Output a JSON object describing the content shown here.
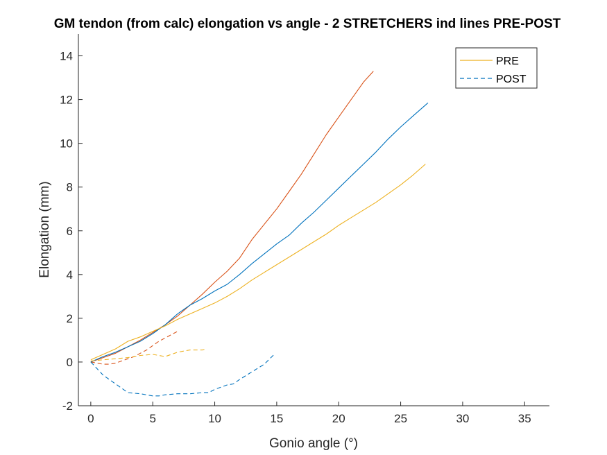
{
  "chart_data": {
    "type": "line",
    "title": "GM tendon (from calc) elongation vs angle - 2 STRETCHERS ind lines PRE-POST",
    "xlabel": "Gonio angle (°)",
    "ylabel": "Elongation (mm)",
    "xlim": [
      -1,
      37
    ],
    "ylim": [
      -2,
      15
    ],
    "xticks": [
      0,
      5,
      10,
      15,
      20,
      25,
      30,
      35
    ],
    "yticks": [
      -2,
      0,
      2,
      4,
      6,
      8,
      10,
      12,
      14
    ],
    "grid": false,
    "legend": {
      "placement": "top-right",
      "entries": [
        {
          "label": "PRE",
          "style": "solid",
          "color": "#EDB120"
        },
        {
          "label": "POST",
          "style": "dashed",
          "color": "#0072BD"
        }
      ]
    },
    "series": [
      {
        "style": "solid",
        "color": "#D95319",
        "x": [
          0,
          1,
          2,
          3,
          4,
          5,
          6,
          7,
          8,
          9,
          10,
          11,
          12,
          13,
          14,
          15,
          16,
          17,
          18,
          19,
          20,
          21,
          22,
          22.8
        ],
        "y": [
          0,
          0.2,
          0.4,
          0.7,
          1.0,
          1.35,
          1.7,
          2.1,
          2.6,
          3.1,
          3.65,
          4.15,
          4.75,
          5.6,
          6.3,
          7.0,
          7.8,
          8.6,
          9.5,
          10.4,
          11.2,
          12.0,
          12.8,
          13.3
        ]
      },
      {
        "style": "solid",
        "color": "#0072BD",
        "x": [
          0,
          1,
          2,
          3,
          4,
          5,
          6,
          7,
          8,
          9,
          10,
          11,
          12,
          13,
          14,
          15,
          16,
          17,
          18,
          19,
          20,
          21,
          22,
          23,
          24,
          25,
          26,
          27.2
        ],
        "y": [
          0,
          0.25,
          0.45,
          0.7,
          0.95,
          1.3,
          1.7,
          2.2,
          2.6,
          2.9,
          3.25,
          3.55,
          4.0,
          4.5,
          4.95,
          5.4,
          5.8,
          6.35,
          6.85,
          7.4,
          7.95,
          8.5,
          9.05,
          9.6,
          10.2,
          10.75,
          11.25,
          11.85
        ]
      },
      {
        "style": "solid",
        "color": "#EDB120",
        "x": [
          0,
          1,
          2,
          3,
          4,
          5,
          6,
          7,
          8,
          9,
          10,
          11,
          12,
          13,
          14,
          15,
          16,
          17,
          18,
          19,
          20,
          21,
          22,
          23,
          24,
          25,
          26,
          27
        ],
        "y": [
          0.1,
          0.35,
          0.6,
          0.95,
          1.15,
          1.4,
          1.65,
          1.95,
          2.2,
          2.45,
          2.7,
          3.0,
          3.35,
          3.75,
          4.1,
          4.45,
          4.8,
          5.15,
          5.5,
          5.85,
          6.25,
          6.6,
          6.95,
          7.3,
          7.7,
          8.1,
          8.55,
          9.05
        ]
      },
      {
        "style": "dashed",
        "color": "#D95319",
        "x": [
          0,
          0.5,
          1,
          1.5,
          2,
          2.5,
          3,
          3.5,
          4,
          4.5,
          5,
          5.5,
          6,
          6.5,
          7
        ],
        "y": [
          0,
          -0.05,
          -0.1,
          -0.1,
          -0.05,
          0.05,
          0.15,
          0.25,
          0.4,
          0.55,
          0.75,
          0.95,
          1.1,
          1.25,
          1.4
        ]
      },
      {
        "style": "dashed",
        "color": "#EDB120",
        "x": [
          0,
          1,
          2,
          3,
          4,
          5,
          6,
          7,
          8,
          9,
          9.3
        ],
        "y": [
          0.05,
          0.1,
          0.15,
          0.2,
          0.3,
          0.35,
          0.25,
          0.45,
          0.55,
          0.55,
          0.6
        ]
      },
      {
        "style": "dashed",
        "color": "#0072BD",
        "x": [
          0,
          0.5,
          1,
          1.5,
          2,
          2.5,
          3,
          4,
          5,
          5.5,
          6,
          7,
          8,
          9,
          9.5,
          10,
          11,
          11.5,
          12,
          13,
          14,
          14.8
        ],
        "y": [
          0,
          -0.3,
          -0.6,
          -0.8,
          -1.0,
          -1.2,
          -1.4,
          -1.45,
          -1.55,
          -1.55,
          -1.5,
          -1.45,
          -1.45,
          -1.4,
          -1.4,
          -1.25,
          -1.05,
          -1.0,
          -0.8,
          -0.45,
          -0.1,
          0.35
        ]
      }
    ]
  }
}
